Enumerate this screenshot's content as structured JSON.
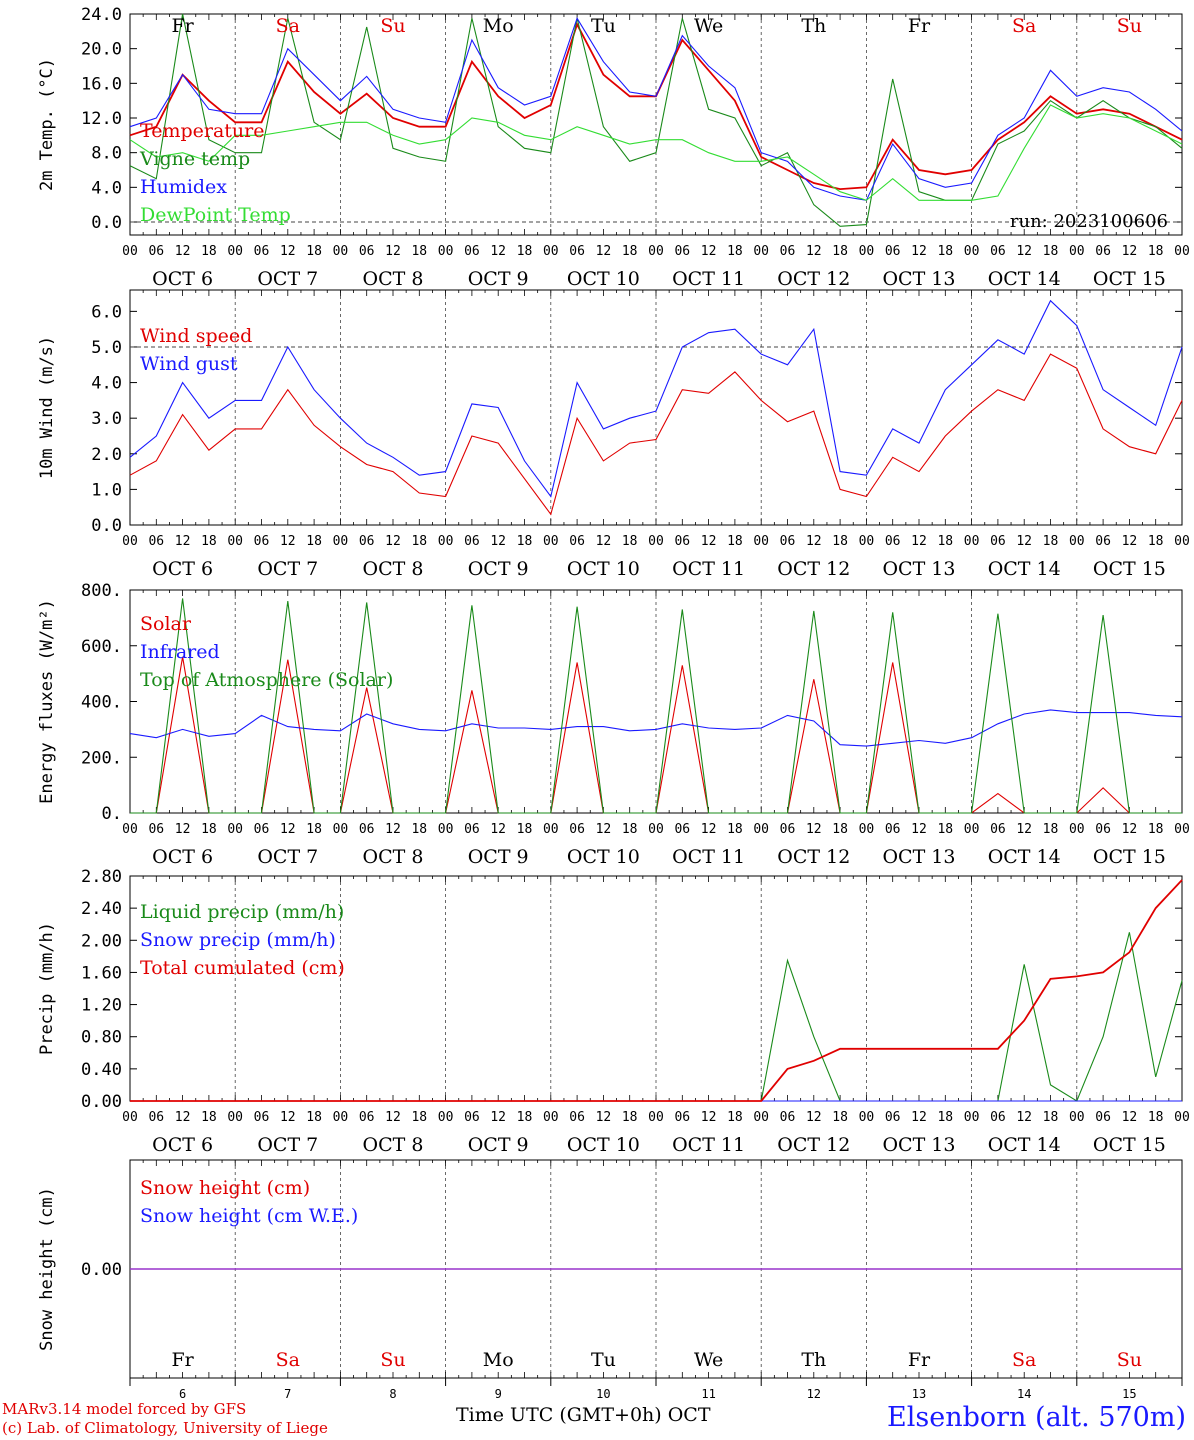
{
  "location_label": "Elsenborn (alt. 570m)",
  "credits": {
    "line1": "MARv3.14 model forced by GFS",
    "line2": "(c) Lab. of Climatology, University of Liege"
  },
  "x_axis_title": "Time UTC (GMT+0h) OCT",
  "run_label": "run: 2023100606",
  "hour_ticks": [
    "00",
    "06",
    "12",
    "18"
  ],
  "dates": [
    "OCT  6",
    "OCT  7",
    "OCT  8",
    "OCT  9",
    "OCT 10",
    "OCT 11",
    "OCT 12",
    "OCT 13",
    "OCT 14",
    "OCT 15"
  ],
  "weekdays": [
    "Fr",
    "Sa",
    "Su",
    "Mo",
    "Tu",
    "We",
    "Th",
    "Fr",
    "Sa",
    "Su"
  ],
  "day_numbers": [
    "6",
    "7",
    "8",
    "9",
    "10",
    "11",
    "12",
    "13",
    "14",
    "15"
  ],
  "weekend_flags": [
    false,
    true,
    true,
    false,
    false,
    false,
    false,
    false,
    true,
    true
  ],
  "colors": {
    "red": "#e00000",
    "blue": "#1a1aff",
    "green": "#1a8a1a",
    "light_green": "#33dd33",
    "purple": "#9933cc",
    "weekend": "#e00000",
    "weekday": "#000000"
  },
  "chart_data": [
    {
      "type": "line",
      "ylabel": "2m Temp. (°C)",
      "ylim": [
        -1.5,
        24.0
      ],
      "yticks": [
        "0.0",
        "4.0",
        "8.0",
        "12.0",
        "16.0",
        "20.0",
        "24.0"
      ],
      "x": [
        0,
        6,
        12,
        18,
        24,
        30,
        36,
        42,
        48,
        54,
        60,
        66,
        72,
        78,
        84,
        90,
        96,
        102,
        108,
        114,
        120,
        126,
        132,
        138,
        144,
        150,
        156,
        162,
        168,
        174,
        180,
        186,
        192,
        198,
        204,
        210,
        216,
        222,
        228,
        234,
        240
      ],
      "series": [
        {
          "name": "Temperature",
          "color": "#e00000",
          "values": [
            10.0,
            11.0,
            17.0,
            14.0,
            11.5,
            11.5,
            18.5,
            15.0,
            12.5,
            14.8,
            12.0,
            11.0,
            11.0,
            18.5,
            14.5,
            12.0,
            13.5,
            22.8,
            17.0,
            14.5,
            14.5,
            21.0,
            17.5,
            14.0,
            7.5,
            6.0,
            4.5,
            3.8,
            4.0,
            9.5,
            6.0,
            5.5,
            6.0,
            9.5,
            11.5,
            14.5,
            12.5,
            13.0,
            12.5,
            11.0,
            9.5
          ]
        },
        {
          "name": "Vigne temp",
          "color": "#1a8a1a",
          "values": [
            6.5,
            5.0,
            24.0,
            9.5,
            8.0,
            8.0,
            23.5,
            11.5,
            9.5,
            22.5,
            8.5,
            7.5,
            7.0,
            23.5,
            11.0,
            8.5,
            8.0,
            23.5,
            11.0,
            7.0,
            8.0,
            23.5,
            13.0,
            12.0,
            6.5,
            8.0,
            2.0,
            -0.5,
            -0.3,
            16.5,
            3.5,
            2.5,
            2.5,
            9.0,
            10.5,
            14.0,
            12.0,
            14.0,
            12.0,
            11.0,
            8.5
          ]
        },
        {
          "name": "Humidex",
          "color": "#1a1aff",
          "values": [
            11.0,
            12.0,
            17.0,
            13.0,
            12.5,
            12.5,
            20.0,
            17.0,
            14.0,
            16.8,
            13.0,
            12.0,
            11.5,
            21.0,
            15.5,
            13.5,
            14.5,
            23.5,
            18.5,
            15.0,
            14.5,
            21.5,
            18.0,
            15.5,
            8.0,
            7.0,
            4.0,
            3.0,
            2.5,
            9.0,
            5.0,
            4.0,
            4.5,
            10.0,
            12.0,
            17.5,
            14.5,
            15.5,
            15.0,
            13.0,
            10.5
          ]
        },
        {
          "name": "DewPoint Temp",
          "color": "#33dd33",
          "values": [
            9.5,
            7.5,
            8.0,
            7.0,
            10.0,
            10.0,
            10.5,
            11.0,
            11.5,
            11.5,
            10.0,
            9.0,
            9.5,
            12.0,
            11.5,
            10.0,
            9.5,
            11.0,
            10.0,
            9.0,
            9.5,
            9.5,
            8.0,
            7.0,
            7.0,
            7.5,
            5.5,
            3.5,
            2.5,
            5.0,
            2.5,
            2.5,
            2.5,
            3.0,
            8.5,
            13.5,
            12.0,
            12.5,
            12.0,
            10.5,
            9.0
          ]
        }
      ]
    },
    {
      "type": "line",
      "ylabel": "10m Wind (m/s)",
      "ylim": [
        0.0,
        6.6
      ],
      "yticks": [
        "0.0",
        "1.0",
        "2.0",
        "3.0",
        "4.0",
        "5.0",
        "6.0"
      ],
      "x": [
        0,
        6,
        12,
        18,
        24,
        30,
        36,
        42,
        48,
        54,
        60,
        66,
        72,
        78,
        84,
        90,
        96,
        102,
        108,
        114,
        120,
        126,
        132,
        138,
        144,
        150,
        156,
        162,
        168,
        174,
        180,
        186,
        192,
        198,
        204,
        210,
        216,
        222,
        228,
        234,
        240
      ],
      "series": [
        {
          "name": "Wind speed",
          "color": "#e00000",
          "values": [
            1.4,
            1.8,
            3.1,
            2.1,
            2.7,
            2.7,
            3.8,
            2.8,
            2.2,
            1.7,
            1.5,
            0.9,
            0.8,
            2.5,
            2.3,
            1.3,
            0.3,
            3.0,
            1.8,
            2.3,
            2.4,
            3.8,
            3.7,
            4.3,
            3.5,
            2.9,
            3.2,
            1.0,
            0.8,
            1.9,
            1.5,
            2.5,
            3.2,
            3.8,
            3.5,
            4.8,
            4.4,
            2.7,
            2.2,
            2.0,
            3.5
          ]
        },
        {
          "name": "Wind gust",
          "color": "#1a1aff",
          "values": [
            1.9,
            2.5,
            4.0,
            3.0,
            3.5,
            3.5,
            5.0,
            3.8,
            3.0,
            2.3,
            1.9,
            1.4,
            1.5,
            3.4,
            3.3,
            1.8,
            0.8,
            4.0,
            2.7,
            3.0,
            3.2,
            5.0,
            5.4,
            5.5,
            4.8,
            4.5,
            5.5,
            1.5,
            1.4,
            2.7,
            2.3,
            3.8,
            4.5,
            5.2,
            4.8,
            6.3,
            5.6,
            3.8,
            3.3,
            2.8,
            5.0
          ]
        }
      ]
    },
    {
      "type": "line",
      "ylabel": "Energy fluxes (W/m²)",
      "ylim": [
        0,
        800
      ],
      "yticks": [
        "0.",
        "200.",
        "400.",
        "600.",
        "800."
      ],
      "x": [
        0,
        6,
        12,
        18,
        24,
        30,
        36,
        42,
        48,
        54,
        60,
        66,
        72,
        78,
        84,
        90,
        96,
        102,
        108,
        114,
        120,
        126,
        132,
        138,
        144,
        150,
        156,
        162,
        168,
        174,
        180,
        186,
        192,
        198,
        204,
        210,
        216,
        222,
        228,
        234,
        240
      ],
      "series": [
        {
          "name": "Solar",
          "color": "#e00000",
          "values": [
            0,
            0,
            560,
            0,
            0,
            0,
            550,
            0,
            0,
            450,
            0,
            0,
            0,
            440,
            0,
            0,
            0,
            540,
            0,
            0,
            0,
            530,
            0,
            0,
            0,
            0,
            480,
            0,
            0,
            540,
            0,
            0,
            0,
            70,
            0,
            0,
            0,
            90,
            0,
            0,
            0
          ]
        },
        {
          "name": "Infrared",
          "color": "#1a1aff",
          "values": [
            285,
            270,
            300,
            275,
            285,
            350,
            310,
            300,
            295,
            355,
            320,
            300,
            295,
            320,
            305,
            305,
            300,
            310,
            310,
            295,
            300,
            320,
            305,
            300,
            305,
            350,
            330,
            245,
            240,
            250,
            260,
            250,
            270,
            320,
            355,
            370,
            360,
            360,
            360,
            350,
            345
          ]
        },
        {
          "name": "Top of Atmosphere (Solar)",
          "color": "#1a8a1a",
          "values": [
            0,
            0,
            770,
            0,
            0,
            0,
            760,
            0,
            0,
            755,
            0,
            0,
            0,
            745,
            0,
            0,
            0,
            740,
            0,
            0,
            0,
            730,
            0,
            0,
            0,
            0,
            725,
            0,
            0,
            720,
            0,
            0,
            0,
            715,
            0,
            0,
            0,
            710,
            0,
            0,
            0
          ]
        }
      ]
    },
    {
      "type": "line",
      "ylabel": "Precip (mm/h)",
      "ylim": [
        0.0,
        2.8
      ],
      "yticks": [
        "0.00",
        "0.40",
        "0.80",
        "1.20",
        "1.60",
        "2.00",
        "2.40",
        "2.80"
      ],
      "x": [
        0,
        6,
        12,
        18,
        24,
        30,
        36,
        42,
        48,
        54,
        60,
        66,
        72,
        78,
        84,
        90,
        96,
        102,
        108,
        114,
        120,
        126,
        132,
        138,
        144,
        150,
        156,
        162,
        168,
        174,
        180,
        186,
        192,
        198,
        204,
        210,
        216,
        222,
        228,
        234,
        240
      ],
      "series": [
        {
          "name": "Liquid precip (mm/h)",
          "color": "#1a8a1a",
          "values": [
            0,
            0,
            0,
            0,
            0,
            0,
            0,
            0,
            0,
            0,
            0,
            0,
            0,
            0,
            0,
            0,
            0,
            0,
            0,
            0,
            0,
            0,
            0,
            0,
            0,
            1.75,
            0.8,
            0,
            0,
            0,
            0,
            0,
            0,
            0,
            1.7,
            0.2,
            0,
            0.8,
            2.1,
            0.3,
            1.5
          ]
        },
        {
          "name": "Snow precip (mm/h)",
          "color": "#1a1aff",
          "values": [
            0,
            0,
            0,
            0,
            0,
            0,
            0,
            0,
            0,
            0,
            0,
            0,
            0,
            0,
            0,
            0,
            0,
            0,
            0,
            0,
            0,
            0,
            0,
            0,
            0,
            0,
            0,
            0,
            0,
            0,
            0,
            0,
            0,
            0,
            0,
            0,
            0,
            0,
            0,
            0,
            0
          ]
        },
        {
          "name": "Total cumulated (cm)",
          "color": "#e00000",
          "values": [
            0,
            0,
            0,
            0,
            0,
            0,
            0,
            0,
            0,
            0,
            0,
            0,
            0,
            0,
            0,
            0,
            0,
            0,
            0,
            0,
            0,
            0,
            0,
            0,
            0,
            0.4,
            0.5,
            0.65,
            0.65,
            0.65,
            0.65,
            0.65,
            0.65,
            0.65,
            1.0,
            1.52,
            1.55,
            1.6,
            1.85,
            2.4,
            2.75
          ]
        }
      ]
    },
    {
      "type": "line",
      "ylabel": "Snow height (cm)",
      "ylim": [
        -1,
        1
      ],
      "yticks": [
        "0.00"
      ],
      "x": [
        0,
        240
      ],
      "series": [
        {
          "name": "Snow height (cm)",
          "color": "#e00000",
          "values": [
            0,
            0
          ]
        },
        {
          "name": "Snow height (cm W.E.)",
          "color": "#1a1aff",
          "values": [
            0,
            0
          ]
        }
      ]
    }
  ]
}
